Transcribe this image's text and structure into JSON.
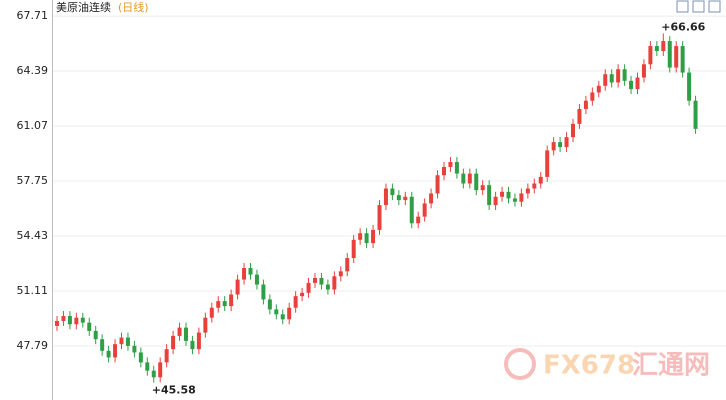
{
  "chart_data": {
    "type": "candlestick",
    "title": "美原油连续",
    "subtitle": "(日线)",
    "watermark": {
      "brand": "FX678",
      "site": "汇通网"
    },
    "ylim": [
      44.53,
      68.68
    ],
    "yticks": [
      47.79,
      51.11,
      54.43,
      57.75,
      61.07,
      64.39,
      67.71
    ],
    "grid": true,
    "up_color": "#e8413c",
    "down_color": "#2f9e44",
    "annotations": [
      {
        "value": 66.66,
        "label": "+66.66"
      },
      {
        "value": 45.58,
        "label": "+45.58"
      }
    ],
    "open": [
      49.0,
      49.3,
      49.6,
      49.1,
      49.5,
      49.2,
      48.7,
      48.2,
      47.5,
      47.1,
      47.9,
      48.3,
      47.8,
      47.4,
      46.8,
      46.3,
      45.9,
      46.8,
      47.6,
      48.4,
      48.9,
      48.1,
      47.6,
      48.6,
      49.5,
      50.1,
      50.5,
      50.2,
      50.9,
      51.8,
      52.5,
      52.1,
      51.5,
      50.6,
      50.0,
      49.7,
      49.4,
      50.1,
      50.8,
      51.0,
      51.6,
      51.9,
      51.5,
      51.2,
      52.0,
      52.3,
      53.1,
      54.2,
      54.6,
      54.0,
      54.8,
      56.3,
      57.3,
      56.9,
      56.6,
      56.8,
      55.2,
      55.6,
      56.4,
      57.0,
      58.1,
      58.6,
      58.9,
      58.2,
      57.6,
      58.2,
      57.2,
      57.5,
      56.3,
      56.8,
      57.1,
      56.7,
      56.5,
      57.0,
      57.3,
      57.6,
      58.0,
      59.6,
      60.1,
      59.8,
      60.4,
      61.2,
      62.1,
      62.6,
      63.1,
      63.5,
      64.2,
      63.7,
      64.5,
      63.8,
      63.3,
      64.0,
      64.8,
      65.9,
      65.6,
      66.2,
      64.6,
      65.9,
      64.3,
      62.6
    ],
    "high": [
      49.6,
      49.9,
      49.9,
      49.8,
      49.8,
      49.5,
      49.0,
      48.5,
      47.8,
      48.2,
      48.6,
      48.6,
      48.1,
      47.7,
      47.1,
      46.6,
      47.1,
      47.9,
      48.7,
      49.2,
      49.2,
      48.4,
      48.9,
      49.8,
      50.4,
      50.8,
      50.8,
      51.2,
      52.1,
      52.8,
      52.8,
      52.4,
      51.8,
      50.9,
      50.3,
      50.0,
      50.4,
      51.1,
      51.3,
      51.9,
      52.2,
      52.2,
      51.8,
      52.3,
      52.6,
      53.4,
      54.5,
      54.9,
      54.9,
      55.1,
      56.6,
      57.6,
      57.6,
      57.2,
      57.1,
      57.1,
      55.9,
      56.7,
      57.3,
      58.4,
      58.9,
      59.2,
      59.2,
      58.5,
      58.5,
      58.5,
      57.8,
      57.8,
      57.1,
      57.4,
      57.4,
      57.0,
      57.3,
      57.6,
      57.9,
      58.3,
      59.9,
      60.4,
      60.4,
      60.7,
      61.5,
      62.4,
      62.9,
      63.4,
      63.8,
      64.5,
      64.5,
      64.8,
      64.8,
      64.1,
      64.3,
      65.1,
      66.2,
      66.2,
      66.66,
      66.5,
      66.2,
      66.2,
      64.6,
      62.9
    ],
    "low": [
      48.7,
      49.0,
      48.8,
      48.8,
      48.9,
      48.4,
      47.9,
      47.2,
      46.8,
      46.8,
      47.6,
      47.5,
      47.1,
      46.5,
      46.0,
      45.58,
      45.6,
      46.5,
      47.3,
      48.1,
      47.8,
      47.3,
      47.3,
      48.3,
      49.2,
      49.8,
      49.9,
      49.9,
      50.6,
      51.5,
      51.8,
      51.2,
      50.3,
      49.7,
      49.4,
      49.1,
      49.1,
      49.8,
      50.5,
      50.7,
      51.3,
      51.2,
      50.9,
      50.9,
      51.7,
      52.0,
      52.8,
      53.9,
      53.7,
      53.7,
      54.5,
      56.0,
      56.6,
      56.3,
      56.3,
      54.9,
      54.9,
      55.3,
      56.1,
      56.7,
      57.8,
      58.3,
      57.9,
      57.3,
      57.3,
      56.9,
      56.9,
      56.0,
      56.0,
      56.5,
      56.4,
      56.2,
      56.2,
      56.7,
      57.0,
      57.3,
      57.7,
      59.3,
      59.5,
      59.5,
      60.1,
      60.9,
      61.8,
      62.3,
      62.8,
      63.2,
      63.4,
      63.4,
      63.5,
      63.0,
      63.0,
      63.7,
      64.5,
      65.3,
      65.3,
      64.3,
      64.3,
      64.0,
      62.3,
      60.6
    ],
    "close": [
      49.3,
      49.6,
      49.1,
      49.5,
      49.2,
      48.7,
      48.2,
      47.5,
      47.1,
      47.9,
      48.3,
      47.8,
      47.4,
      46.8,
      46.3,
      45.9,
      46.8,
      47.6,
      48.4,
      48.9,
      48.1,
      47.6,
      48.6,
      49.5,
      50.1,
      50.5,
      50.2,
      50.9,
      51.8,
      52.5,
      52.1,
      51.5,
      50.6,
      50.0,
      49.7,
      49.4,
      50.1,
      50.8,
      51.0,
      51.6,
      51.9,
      51.5,
      51.2,
      52.0,
      52.3,
      53.1,
      54.2,
      54.6,
      54.0,
      54.8,
      56.3,
      57.3,
      56.9,
      56.6,
      56.8,
      55.2,
      55.6,
      56.4,
      57.0,
      58.1,
      58.6,
      58.9,
      58.2,
      57.6,
      58.2,
      57.2,
      57.5,
      56.3,
      56.8,
      57.1,
      56.7,
      56.5,
      57.0,
      57.3,
      57.6,
      58.0,
      59.6,
      60.1,
      59.8,
      60.4,
      61.2,
      62.1,
      62.6,
      63.1,
      63.5,
      64.2,
      63.7,
      64.5,
      63.8,
      63.3,
      64.0,
      64.8,
      65.9,
      65.6,
      66.2,
      64.6,
      65.9,
      64.3,
      62.6,
      60.9
    ]
  }
}
